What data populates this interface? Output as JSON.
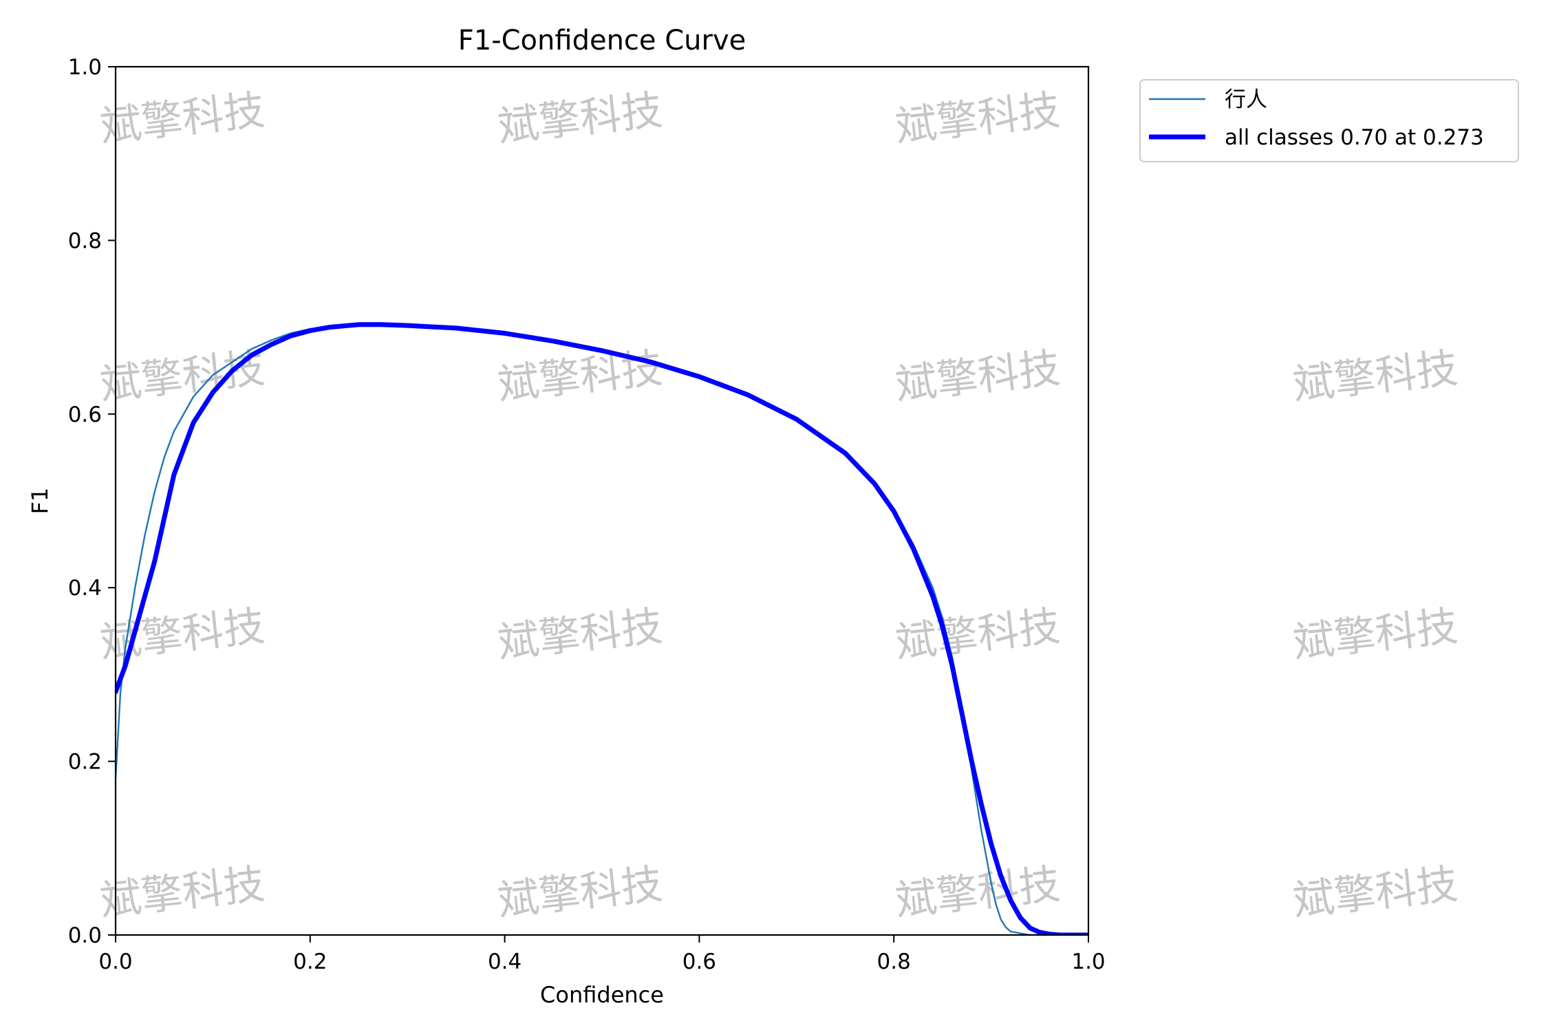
{
  "chart_data": {
    "type": "line",
    "title": "F1-Confidence Curve",
    "xlabel": "Confidence",
    "ylabel": "F1",
    "xlim": [
      0.0,
      1.0
    ],
    "ylim": [
      0.0,
      1.0
    ],
    "xticks": [
      "0.0",
      "0.2",
      "0.4",
      "0.6",
      "0.8",
      "1.0"
    ],
    "yticks": [
      "0.0",
      "0.2",
      "0.4",
      "0.6",
      "0.8",
      "1.0"
    ],
    "grid": false,
    "legend_position": "outside upper right",
    "series": [
      {
        "name": "行人",
        "color": "#1f77b4",
        "linewidth": "thin",
        "x": [
          0.0,
          0.005,
          0.01,
          0.02,
          0.03,
          0.04,
          0.05,
          0.06,
          0.08,
          0.1,
          0.12,
          0.14,
          0.16,
          0.18,
          0.2,
          0.22,
          0.25,
          0.273,
          0.3,
          0.35,
          0.4,
          0.45,
          0.5,
          0.55,
          0.6,
          0.65,
          0.7,
          0.75,
          0.78,
          0.8,
          0.82,
          0.84,
          0.85,
          0.86,
          0.87,
          0.88,
          0.89,
          0.9,
          0.905,
          0.91,
          0.915,
          0.92,
          0.93,
          0.94,
          0.96,
          1.0
        ],
        "y": [
          0.18,
          0.28,
          0.33,
          0.4,
          0.46,
          0.51,
          0.55,
          0.58,
          0.62,
          0.645,
          0.66,
          0.675,
          0.685,
          0.693,
          0.698,
          0.701,
          0.703,
          0.703,
          0.702,
          0.699,
          0.693,
          0.685,
          0.674,
          0.661,
          0.645,
          0.624,
          0.596,
          0.556,
          0.52,
          0.49,
          0.45,
          0.4,
          0.365,
          0.32,
          0.26,
          0.19,
          0.12,
          0.06,
          0.035,
          0.018,
          0.009,
          0.004,
          0.002,
          0.0,
          0.0,
          0.0
        ]
      },
      {
        "name": "all classes 0.70 at 0.273",
        "color": "#0000ff",
        "linewidth": "thick",
        "x": [
          0.0,
          0.01,
          0.02,
          0.03,
          0.04,
          0.05,
          0.06,
          0.08,
          0.1,
          0.12,
          0.14,
          0.16,
          0.18,
          0.2,
          0.22,
          0.25,
          0.273,
          0.3,
          0.35,
          0.4,
          0.45,
          0.5,
          0.55,
          0.6,
          0.65,
          0.7,
          0.75,
          0.78,
          0.8,
          0.82,
          0.84,
          0.85,
          0.86,
          0.87,
          0.88,
          0.89,
          0.9,
          0.91,
          0.92,
          0.93,
          0.94,
          0.95,
          0.96,
          0.97,
          0.98,
          1.0
        ],
        "y": [
          0.28,
          0.31,
          0.35,
          0.39,
          0.43,
          0.48,
          0.53,
          0.59,
          0.625,
          0.65,
          0.668,
          0.68,
          0.69,
          0.696,
          0.7,
          0.703,
          0.703,
          0.702,
          0.699,
          0.693,
          0.684,
          0.673,
          0.66,
          0.643,
          0.622,
          0.594,
          0.555,
          0.52,
          0.488,
          0.445,
          0.39,
          0.355,
          0.31,
          0.255,
          0.2,
          0.15,
          0.105,
          0.068,
          0.04,
          0.02,
          0.008,
          0.003,
          0.001,
          0.0,
          0.0,
          0.0
        ]
      }
    ]
  },
  "watermark": {
    "text": "斌擎科技"
  }
}
